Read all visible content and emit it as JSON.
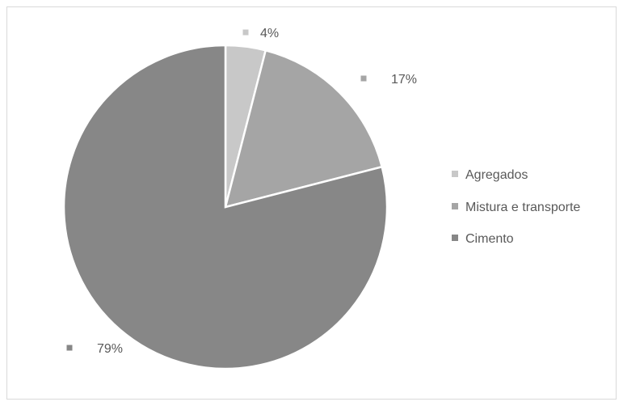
{
  "chart_data": {
    "type": "pie",
    "title": "",
    "categories": [
      "Agregados",
      "Mistura e transporte",
      "Cimento"
    ],
    "values": [
      4,
      17,
      79
    ],
    "data_labels": [
      "4%",
      "17%",
      "79%"
    ],
    "colors": [
      "#c8c8c8",
      "#a5a5a5",
      "#878787"
    ],
    "legend": {
      "placement": "right",
      "entries": [
        "Agregados",
        "Mistura e transporte",
        "Cimento"
      ]
    }
  }
}
